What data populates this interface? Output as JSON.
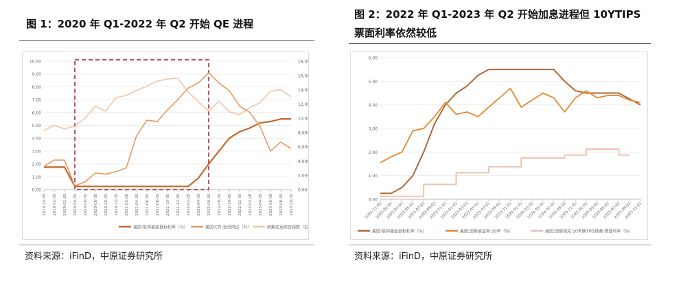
{
  "left": {
    "title": "图 1：2020 年 Q1-2022 年 Q2 开始 QE 进程",
    "source": "资料来源：iFinD，中原证券研究所"
  },
  "right": {
    "title_line1": "图 2：2022 年 Q1-2023 年 Q2 开始加息进程但 10YTIPS",
    "title_line2": "票面利率依然较低",
    "source": "资料来源：iFinD，中原证券研究所"
  },
  "chart_data": [
    {
      "type": "line",
      "title": "",
      "grid": true,
      "legend_position": "bottom",
      "highlight_box": {
        "from": "2020-04-30",
        "to": "2022-06-30",
        "style": "dashed",
        "color": "#c0505f"
      },
      "y_left": {
        "range": [
          0,
          10
        ],
        "ticks": [
          "0.00",
          "1.00",
          "2.00",
          "3.00",
          "4.00",
          "5.00",
          "6.00",
          "7.00",
          "8.00",
          "9.00",
          "10.00"
        ]
      },
      "y_right": {
        "range": [
          0,
          18000
        ],
        "ticks": [
          "0.00",
          "2,000.00",
          "4,000.00",
          "6,000.00",
          "8,000.00",
          "10,000.00",
          "12,000.00",
          "14,000.00",
          "16,000.00",
          "18,000.00"
        ]
      },
      "x": [
        "2019-10-30",
        "2019-12-30",
        "2020-02-29",
        "2020-04-30",
        "2020-06-30",
        "2020-08-30",
        "2020-10-30",
        "2020-12-30",
        "2021-02-28",
        "2021-04-30",
        "2021-06-30",
        "2021-08-30",
        "2021-10-30",
        "2021-12-30",
        "2022-02-28",
        "2022-04-30",
        "2022-06-30",
        "2022-08-30",
        "2022-10-30",
        "2022-12-30",
        "2023-02-28",
        "2023-04-30",
        "2023-06-30",
        "2023-08-30",
        "2023-10-30"
      ],
      "series": [
        {
          "name": "美国:联邦基金目标利率（%）",
          "axis": "left",
          "color": "#c0692c",
          "width": 2.2,
          "values": [
            1.75,
            1.75,
            1.75,
            0.25,
            0.25,
            0.25,
            0.25,
            0.25,
            0.25,
            0.25,
            0.25,
            0.25,
            0.25,
            0.25,
            0.25,
            0.9,
            2.0,
            3.0,
            4.0,
            4.5,
            4.8,
            5.2,
            5.3,
            5.5,
            5.5
          ]
        },
        {
          "name": "美国:CPI:当月同比（%）",
          "axis": "left",
          "color": "#e39a62",
          "width": 1.6,
          "values": [
            1.8,
            2.3,
            2.3,
            0.3,
            0.6,
            1.3,
            1.2,
            1.4,
            1.7,
            4.2,
            5.4,
            5.3,
            6.2,
            7.0,
            7.9,
            8.3,
            9.1,
            8.3,
            7.7,
            6.5,
            6.0,
            4.9,
            3.0,
            3.7,
            3.2
          ]
        },
        {
          "name": "纳斯达克综合指数（右轴）",
          "axis": "right",
          "color": "#f2c4a6",
          "width": 1.6,
          "values": [
            8300,
            9000,
            8500,
            8900,
            10000,
            11700,
            11000,
            12900,
            13200,
            13900,
            14500,
            15200,
            15500,
            15600,
            13700,
            12300,
            11000,
            12400,
            10900,
            10500,
            11500,
            12200,
            13800,
            14000,
            13000
          ]
        }
      ]
    },
    {
      "type": "line",
      "title": "",
      "grid": true,
      "legend_position": "bottom",
      "y_left": {
        "range": [
          0,
          6
        ],
        "ticks": [
          "0.00",
          "1.00",
          "2.00",
          "3.00",
          "4.00",
          "5.00",
          "6.00"
        ]
      },
      "x": [
        "2021-11-01",
        "2022-01-01",
        "2022-03-01",
        "2022-05-01",
        "2022-07-01",
        "2022-09-01",
        "2022-11-01",
        "2023-01-01",
        "2023-03-01",
        "2023-05-01",
        "2023-07-01",
        "2023-09-01",
        "2023-11-01",
        "2024-01-01",
        "2024-03-01",
        "2024-05-01",
        "2024-07-01",
        "2024-09-01",
        "2024-11-01",
        "2025-01-01",
        "2025-03-01",
        "2025-05-01",
        "2025-07-01",
        "2025-09-01",
        "2025-11-01"
      ],
      "series": [
        {
          "name": "美国:联邦基金目标利率（%）",
          "axis": "left",
          "color": "#b0683a",
          "width": 2.0,
          "values": [
            0.25,
            0.25,
            0.5,
            1.0,
            2.0,
            3.2,
            4.0,
            4.5,
            4.8,
            5.25,
            5.5,
            5.5,
            5.5,
            5.5,
            5.5,
            5.5,
            5.5,
            5.0,
            4.6,
            4.5,
            4.5,
            4.5,
            4.5,
            4.25,
            4.0
          ]
        },
        {
          "name": "美国:国债收益率:10年（%）",
          "axis": "left",
          "color": "#e08a2e",
          "width": 1.8,
          "values": [
            1.55,
            1.8,
            2.0,
            2.9,
            3.0,
            3.5,
            4.1,
            3.6,
            3.7,
            3.5,
            3.9,
            4.3,
            4.7,
            3.9,
            4.2,
            4.5,
            4.3,
            3.7,
            4.3,
            4.6,
            4.3,
            4.4,
            4.4,
            4.2,
            4.1
          ]
        },
        {
          "name": "美国:国债相关:10年期TIPS债券:票面利率（%）",
          "axis": "left",
          "color": "#edc2b0",
          "width": 2.0,
          "step": true,
          "values": [
            0.125,
            0.125,
            0.125,
            0.125,
            0.625,
            0.625,
            0.625,
            1.125,
            1.125,
            1.125,
            1.375,
            1.375,
            1.375,
            1.75,
            1.75,
            1.75,
            1.75,
            1.875,
            1.875,
            2.125,
            2.125,
            2.125,
            1.875,
            1.875,
            null
          ]
        }
      ]
    }
  ]
}
